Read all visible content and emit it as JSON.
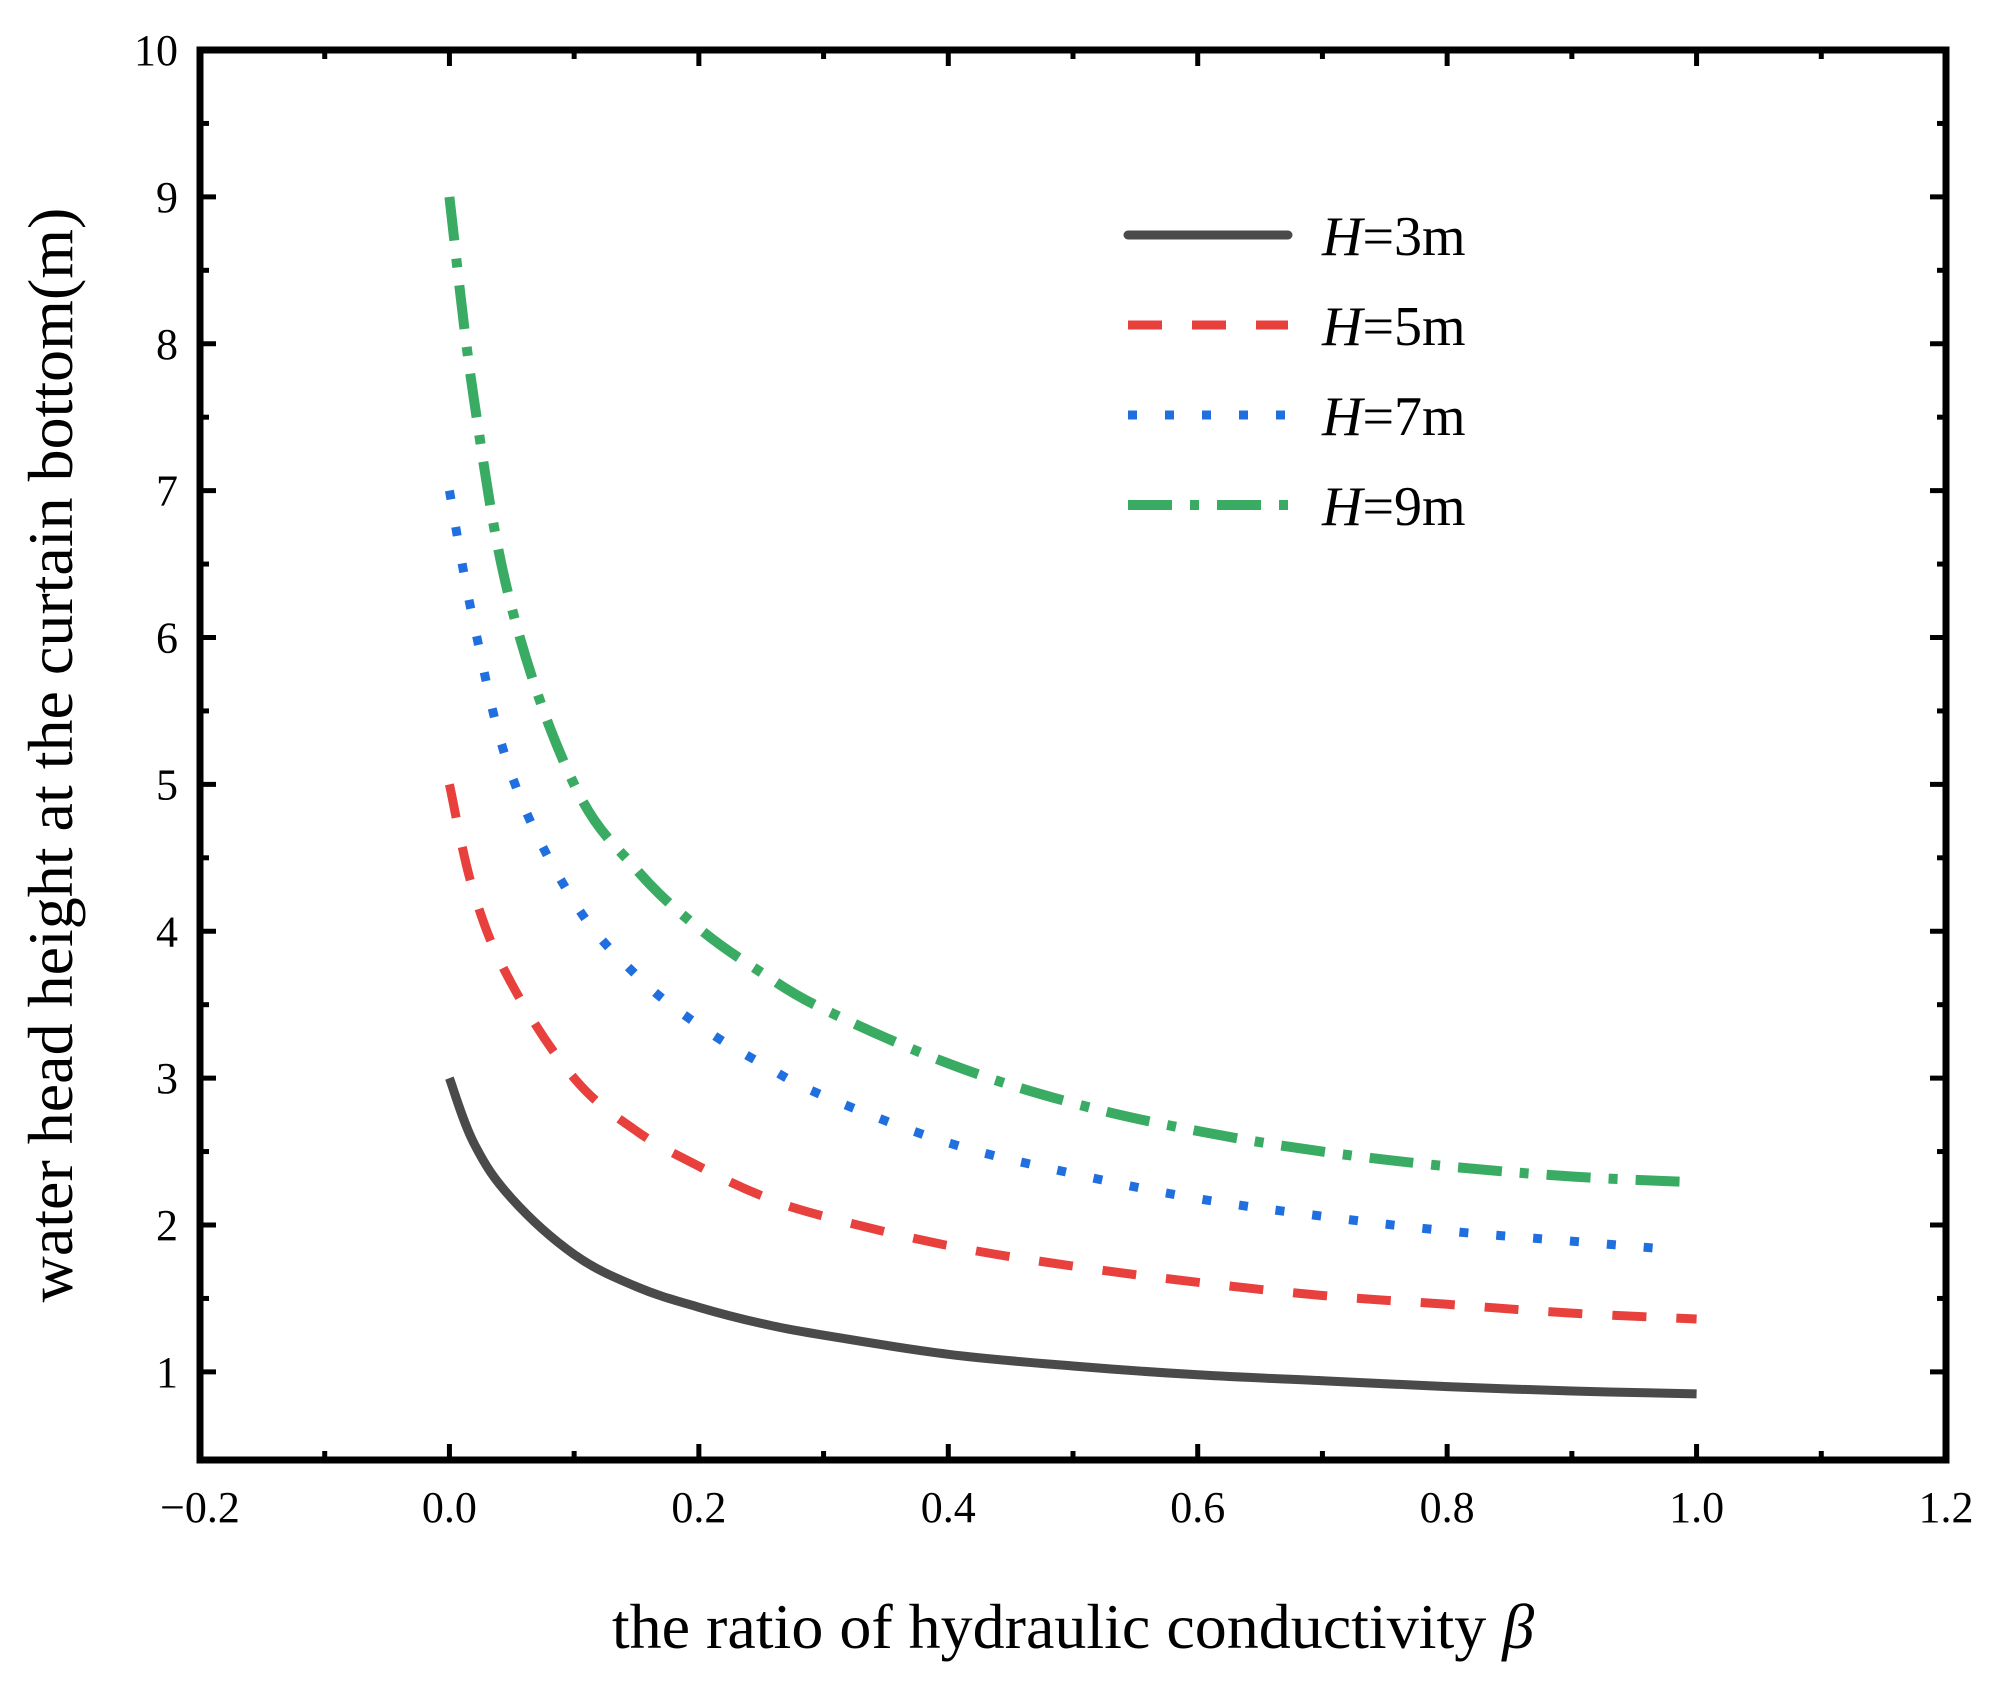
{
  "chart_data": {
    "type": "line",
    "title": "",
    "xlabel": "the ratio of hydraulic conductivity",
    "xlabel_symbol": "β",
    "ylabel": "water head height at the curtain bottom(m)",
    "xlim": [
      -0.2,
      1.2
    ],
    "ylim": [
      0.4,
      10
    ],
    "xticks": [
      -0.2,
      0.0,
      0.2,
      0.4,
      0.6,
      0.8,
      1.0,
      1.2
    ],
    "xtick_labels": [
      "−0.2",
      "0.0",
      "0.2",
      "0.4",
      "0.6",
      "0.8",
      "1.0",
      "1.2"
    ],
    "yticks": [
      1,
      2,
      3,
      4,
      5,
      6,
      7,
      8,
      9,
      10
    ],
    "ytick_labels": [
      "1",
      "2",
      "3",
      "4",
      "5",
      "6",
      "7",
      "8",
      "9",
      "10"
    ],
    "grid": false,
    "legend_position": "top-right",
    "series": [
      {
        "name": "H=3m",
        "legend_symbol": "H",
        "legend_rest": "=3m",
        "color": "#4a4a4a",
        "style": "solid",
        "x": [
          0.0,
          0.02,
          0.05,
          0.1,
          0.15,
          0.2,
          0.25,
          0.3,
          0.4,
          0.5,
          0.6,
          0.7,
          0.8,
          0.9,
          1.0
        ],
        "y": [
          3.0,
          2.55,
          2.18,
          1.8,
          1.58,
          1.44,
          1.33,
          1.25,
          1.12,
          1.04,
          0.98,
          0.94,
          0.9,
          0.87,
          0.85
        ]
      },
      {
        "name": "H=5m",
        "legend_symbol": "H",
        "legend_rest": "=5m",
        "color": "#e8403d",
        "style": "dashed",
        "x": [
          0.0,
          0.02,
          0.05,
          0.1,
          0.15,
          0.2,
          0.25,
          0.3,
          0.4,
          0.5,
          0.6,
          0.7,
          0.8,
          0.9,
          1.0
        ],
        "y": [
          5.0,
          4.25,
          3.64,
          3.0,
          2.64,
          2.4,
          2.2,
          2.06,
          1.86,
          1.72,
          1.61,
          1.52,
          1.46,
          1.4,
          1.36
        ]
      },
      {
        "name": "H=7m",
        "legend_symbol": "H",
        "legend_rest": "=7m",
        "color": "#1f6fe0",
        "style": "dotted",
        "x": [
          0.0,
          0.02,
          0.05,
          0.1,
          0.15,
          0.2,
          0.25,
          0.3,
          0.4,
          0.5,
          0.6,
          0.7,
          0.8,
          0.9,
          0.97
        ],
        "y": [
          7.0,
          6.08,
          5.06,
          4.2,
          3.7,
          3.36,
          3.1,
          2.88,
          2.56,
          2.35,
          2.18,
          2.06,
          1.96,
          1.89,
          1.84
        ]
      },
      {
        "name": "H=9m",
        "legend_symbol": "H",
        "legend_rest": "=9m",
        "color": "#3aab63",
        "style": "dashdot",
        "x": [
          0.0,
          0.02,
          0.05,
          0.1,
          0.15,
          0.2,
          0.25,
          0.3,
          0.4,
          0.5,
          0.6,
          0.7,
          0.8,
          0.9,
          1.0
        ],
        "y": [
          9.0,
          7.6,
          6.2,
          5.0,
          4.42,
          4.02,
          3.72,
          3.47,
          3.1,
          2.83,
          2.64,
          2.5,
          2.4,
          2.33,
          2.29
        ]
      }
    ]
  }
}
